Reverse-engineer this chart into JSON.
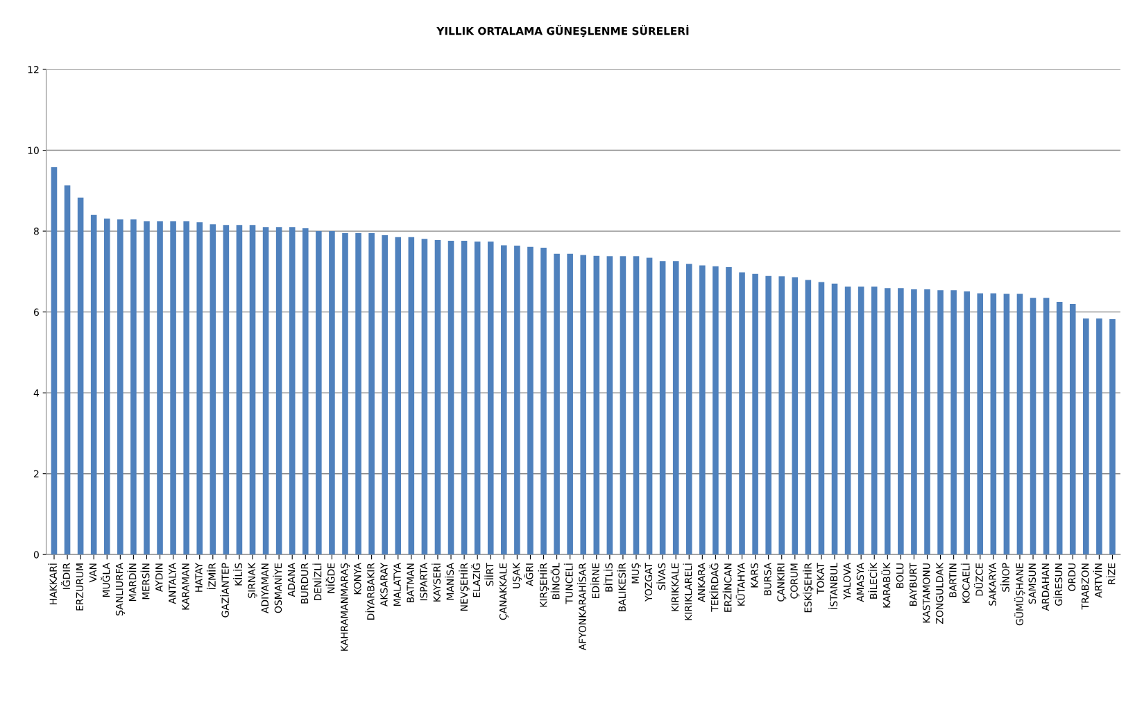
{
  "chart_data": {
    "type": "bar",
    "title": "YILLIK ORTALAMA GÜNEŞLENME SÜRELERİ",
    "categories": [
      "HAKKARİ",
      "IĞDIR",
      "ERZURUM",
      "VAN",
      "MUĞLA",
      "ŞANLIURFA",
      "MARDİN",
      "MERSİN",
      "AYDIN",
      "ANTALYA",
      "KARAMAN",
      "HATAY",
      "İZMİR",
      "GAZİANTEP",
      "KİLİS",
      "ŞIRNAK",
      "ADIYAMAN",
      "OSMANİYE",
      "ADANA",
      "BURDUR",
      "DENİZLİ",
      "NİĞDE",
      "KAHRAMANMARAŞ",
      "KONYA",
      "DİYARBAKIR",
      "AKSARAY",
      "MALATYA",
      "BATMAN",
      "ISPARTA",
      "KAYSERİ",
      "MANİSA",
      "NEVŞEHİR",
      "ELAZIĞ",
      "SİİRT",
      "ÇANAKKALE",
      "UŞAK",
      "AĞRI",
      "KIRŞEHİR",
      "BİNGÖL",
      "TUNCELİ",
      "AFYONKARAHİSAR",
      "EDİRNE",
      "BİTLİS",
      "BALIKESİR",
      "MUŞ",
      "YOZGAT",
      "SİVAS",
      "KIRIKKALE",
      "KIRIKLARELİ",
      "ANKARA",
      "TEKİRDAĞ",
      "ERZİNCAN",
      "KÜTAHYA",
      "KARS",
      "BURSA",
      "ÇANKIRI",
      "ÇORUM",
      "ESKİŞEHİR",
      "TOKAT",
      "İSTANBUL",
      "YALOVA",
      "AMASYA",
      "BİLECİK",
      "KARABÜK",
      "BOLU",
      "BAYBURT",
      "KASTAMONU",
      "ZONGULDAK",
      "BARTIN",
      "KOCAELİ",
      "DÜZCE",
      "SAKARYA",
      "SİNOP",
      "GÜMÜŞHANE",
      "SAMSUN",
      "ARDAHAN",
      "GİRESUN",
      "ORDU",
      "TRABZON",
      "ARTVİN",
      "RİZE"
    ],
    "values": [
      9.58,
      9.13,
      8.83,
      8.4,
      8.31,
      8.29,
      8.29,
      8.24,
      8.24,
      8.24,
      8.24,
      8.22,
      8.17,
      8.15,
      8.15,
      8.15,
      8.1,
      8.1,
      8.1,
      8.07,
      8.0,
      8.0,
      7.95,
      7.95,
      7.95,
      7.9,
      7.85,
      7.85,
      7.81,
      7.78,
      7.76,
      7.76,
      7.74,
      7.74,
      7.65,
      7.64,
      7.61,
      7.59,
      7.44,
      7.44,
      7.41,
      7.39,
      7.38,
      7.38,
      7.38,
      7.34,
      7.26,
      7.26,
      7.19,
      7.15,
      7.13,
      7.11,
      6.98,
      6.94,
      6.89,
      6.88,
      6.86,
      6.79,
      6.74,
      6.7,
      6.63,
      6.63,
      6.63,
      6.59,
      6.59,
      6.56,
      6.56,
      6.54,
      6.54,
      6.51,
      6.46,
      6.46,
      6.45,
      6.45,
      6.35,
      6.35,
      6.25,
      6.2,
      5.84,
      5.84,
      5.82
    ],
    "color": "#4f81bd",
    "ylim": [
      0,
      12
    ],
    "yticks": [
      0,
      2,
      4,
      6,
      8,
      10,
      12
    ],
    "grid": "y",
    "legend": false
  }
}
